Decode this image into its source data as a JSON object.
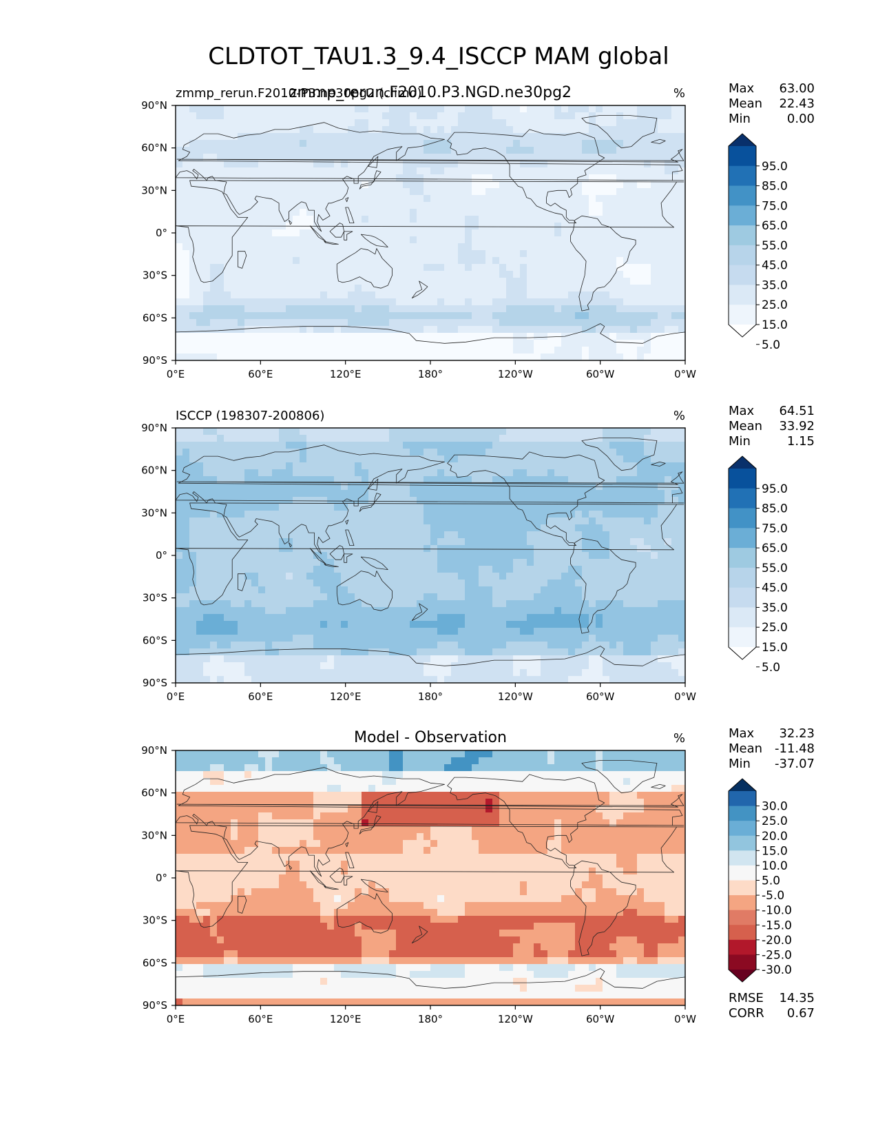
{
  "figure": {
    "title": "CLDTOT_TAU1.3_9.4_ISCCP MAM global"
  },
  "axes_ticks": {
    "lat": [
      "90°N",
      "60°N",
      "30°N",
      "0°",
      "30°S",
      "60°S",
      "90°S"
    ],
    "lon": [
      "0°E",
      "60°E",
      "120°E",
      "180°",
      "120°W",
      "60°W",
      "0°W"
    ]
  },
  "panels": [
    {
      "id": "test",
      "left_label": "zmmp_rerun.F2010-P3.ne30pg2 (climo)",
      "center_label": "zmmp_rerun.F2010.P3.NGD.ne30pg2",
      "units": "%",
      "stats": [
        {
          "label": "Max",
          "value": "63.00"
        },
        {
          "label": "Mean",
          "value": "22.43"
        },
        {
          "label": "Min",
          "value": "0.00"
        }
      ],
      "colorbar": {
        "ticks": [
          "95.0",
          "85.0",
          "75.0",
          "65.0",
          "55.0",
          "45.0",
          "35.0",
          "25.0",
          "15.0",
          "5.0"
        ],
        "colors": [
          "#08306b",
          "#08519c",
          "#2171b5",
          "#4292c6",
          "#6baed6",
          "#9ecae1",
          "#b7d4ea",
          "#c6dbef",
          "#dbe9f6",
          "#eef5fc",
          "#ffffff"
        ]
      },
      "fill_colors": [
        "#f7fbff",
        "#e3eef9",
        "#cfe1f2",
        "#b5d4e9",
        "#93c4e2",
        "#6aaed6",
        "#4a98c9"
      ]
    },
    {
      "id": "reference",
      "left_label": "ISCCP (198307-200806)",
      "center_label": "",
      "units": "%",
      "stats": [
        {
          "label": "Max",
          "value": "64.51"
        },
        {
          "label": "Mean",
          "value": "33.92"
        },
        {
          "label": "Min",
          "value": "1.15"
        }
      ],
      "colorbar": {
        "ticks": [
          "95.0",
          "85.0",
          "75.0",
          "65.0",
          "55.0",
          "45.0",
          "35.0",
          "25.0",
          "15.0",
          "5.0"
        ],
        "colors": [
          "#08306b",
          "#08519c",
          "#2171b5",
          "#4292c6",
          "#6baed6",
          "#9ecae1",
          "#b7d4ea",
          "#c6dbef",
          "#dbe9f6",
          "#eef5fc",
          "#ffffff"
        ]
      },
      "fill_colors": [
        "#e8f1fa",
        "#cfe1f2",
        "#b5d4e9",
        "#93c4e2",
        "#6aaed6",
        "#4a98c9"
      ]
    },
    {
      "id": "diff",
      "left_label": "",
      "center_label": "Model - Observation",
      "units": "%",
      "stats": [
        {
          "label": "Max",
          "value": "32.23"
        },
        {
          "label": "Mean",
          "value": "-11.48"
        },
        {
          "label": "Min",
          "value": "-37.07"
        }
      ],
      "extra_stats": [
        {
          "label": "RMSE",
          "value": "14.35"
        },
        {
          "label": "CORR",
          "value": "0.67"
        }
      ],
      "colorbar": {
        "ticks": [
          "30.0",
          "25.0",
          "20.0",
          "15.0",
          "10.0",
          "5.0",
          "-5.0",
          "-10.0",
          "-15.0",
          "-20.0",
          "-25.0",
          "-30.0"
        ],
        "colors": [
          "#053061",
          "#2166ac",
          "#4393c3",
          "#6aaed6",
          "#92c5de",
          "#d1e5f0",
          "#f7f7f7",
          "#fddbc7",
          "#f4a582",
          "#e07b65",
          "#d6604d",
          "#b2182b",
          "#8b0a22",
          "#67001f"
        ]
      },
      "fill_colors": [
        "#67001f",
        "#b2182b",
        "#d6604d",
        "#f4a582",
        "#fddbc7",
        "#f7f7f7",
        "#d1e5f0",
        "#92c5de",
        "#4393c3",
        "#2166ac"
      ]
    }
  ]
}
